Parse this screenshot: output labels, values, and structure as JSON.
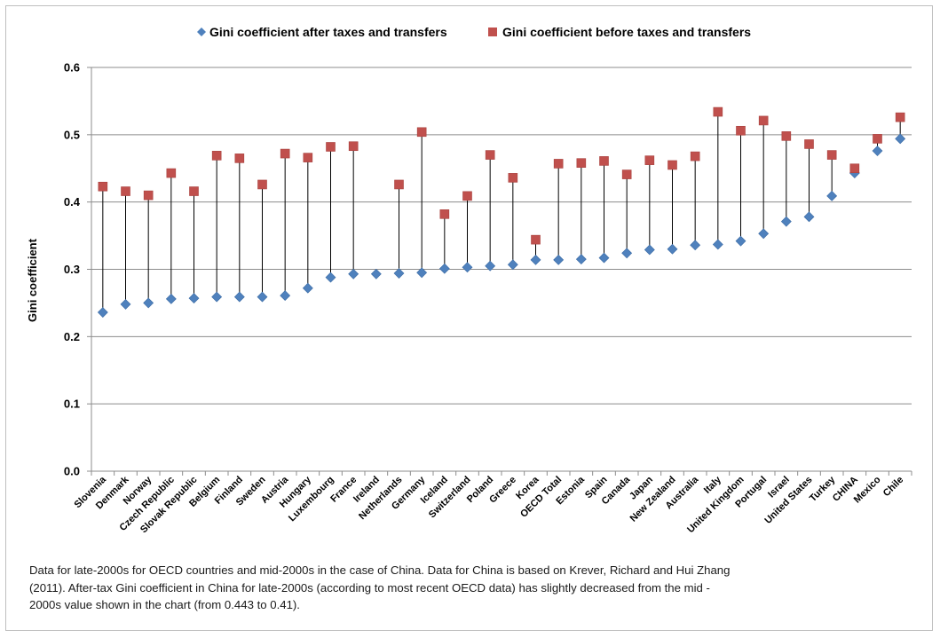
{
  "chart_data": {
    "type": "scatter",
    "title": "",
    "ylabel": "Gini coefficient",
    "xlabel": "",
    "ylim": [
      0,
      0.6
    ],
    "yticks": [
      "0.0",
      "0.1",
      "0.2",
      "0.3",
      "0.4",
      "0.5",
      "0.6"
    ],
    "grid": true,
    "legend_position": "top",
    "categories": [
      "Slovenia",
      "Denmark",
      "Norway",
      "Czech Republic",
      "Slovak Republic",
      "Belgium",
      "Finland",
      "Sweden",
      "Austria",
      "Hungary",
      "Luxembourg",
      "France",
      "Ireland",
      "Netherlands",
      "Germany",
      "Iceland",
      "Switzerland",
      "Poland",
      "Greece",
      "Korea",
      "OECD Total",
      "Estonia",
      "Spain",
      "Canada",
      "Japan",
      "New Zealand",
      "Australia",
      "Italy",
      "United Kingdom",
      "Portugal",
      "Israel",
      "United States",
      "Turkey",
      "CHINA",
      "Mexico",
      "Chile"
    ],
    "series": [
      {
        "name": "Gini coefficient after taxes and transfers",
        "marker": "diamond",
        "color": "#4f81bd",
        "values": [
          0.236,
          0.248,
          0.25,
          0.256,
          0.257,
          0.259,
          0.259,
          0.259,
          0.261,
          0.272,
          0.288,
          0.293,
          0.293,
          0.294,
          0.295,
          0.301,
          0.303,
          0.305,
          0.307,
          0.314,
          0.314,
          0.315,
          0.317,
          0.324,
          0.329,
          0.33,
          0.336,
          0.337,
          0.342,
          0.353,
          0.371,
          0.378,
          0.409,
          0.443,
          0.476,
          0.494
        ]
      },
      {
        "name": "Gini coefficient before taxes and transfers",
        "marker": "square",
        "color": "#c0504d",
        "values": [
          0.423,
          0.416,
          0.41,
          0.443,
          0.416,
          0.469,
          0.465,
          0.426,
          0.472,
          0.466,
          0.482,
          0.483,
          null,
          0.426,
          0.504,
          0.382,
          0.409,
          0.47,
          0.436,
          0.344,
          0.457,
          0.458,
          0.461,
          0.441,
          0.462,
          0.455,
          0.468,
          0.534,
          0.506,
          0.521,
          0.498,
          0.486,
          0.47,
          0.45,
          0.494,
          0.526
        ]
      }
    ]
  },
  "note": {
    "line1": "Data for late-2000s for OECD countries and mid-2000s in the case of China. Data for China is based on Krever, Richard and Hui Zhang",
    "line2": "(2011). After-tax Gini coefficient in China for late-2000s (according to most recent OECD data) has slightly decreased from the mid -",
    "line3": "2000s value shown in the chart (from 0.443 to 0.41)."
  }
}
